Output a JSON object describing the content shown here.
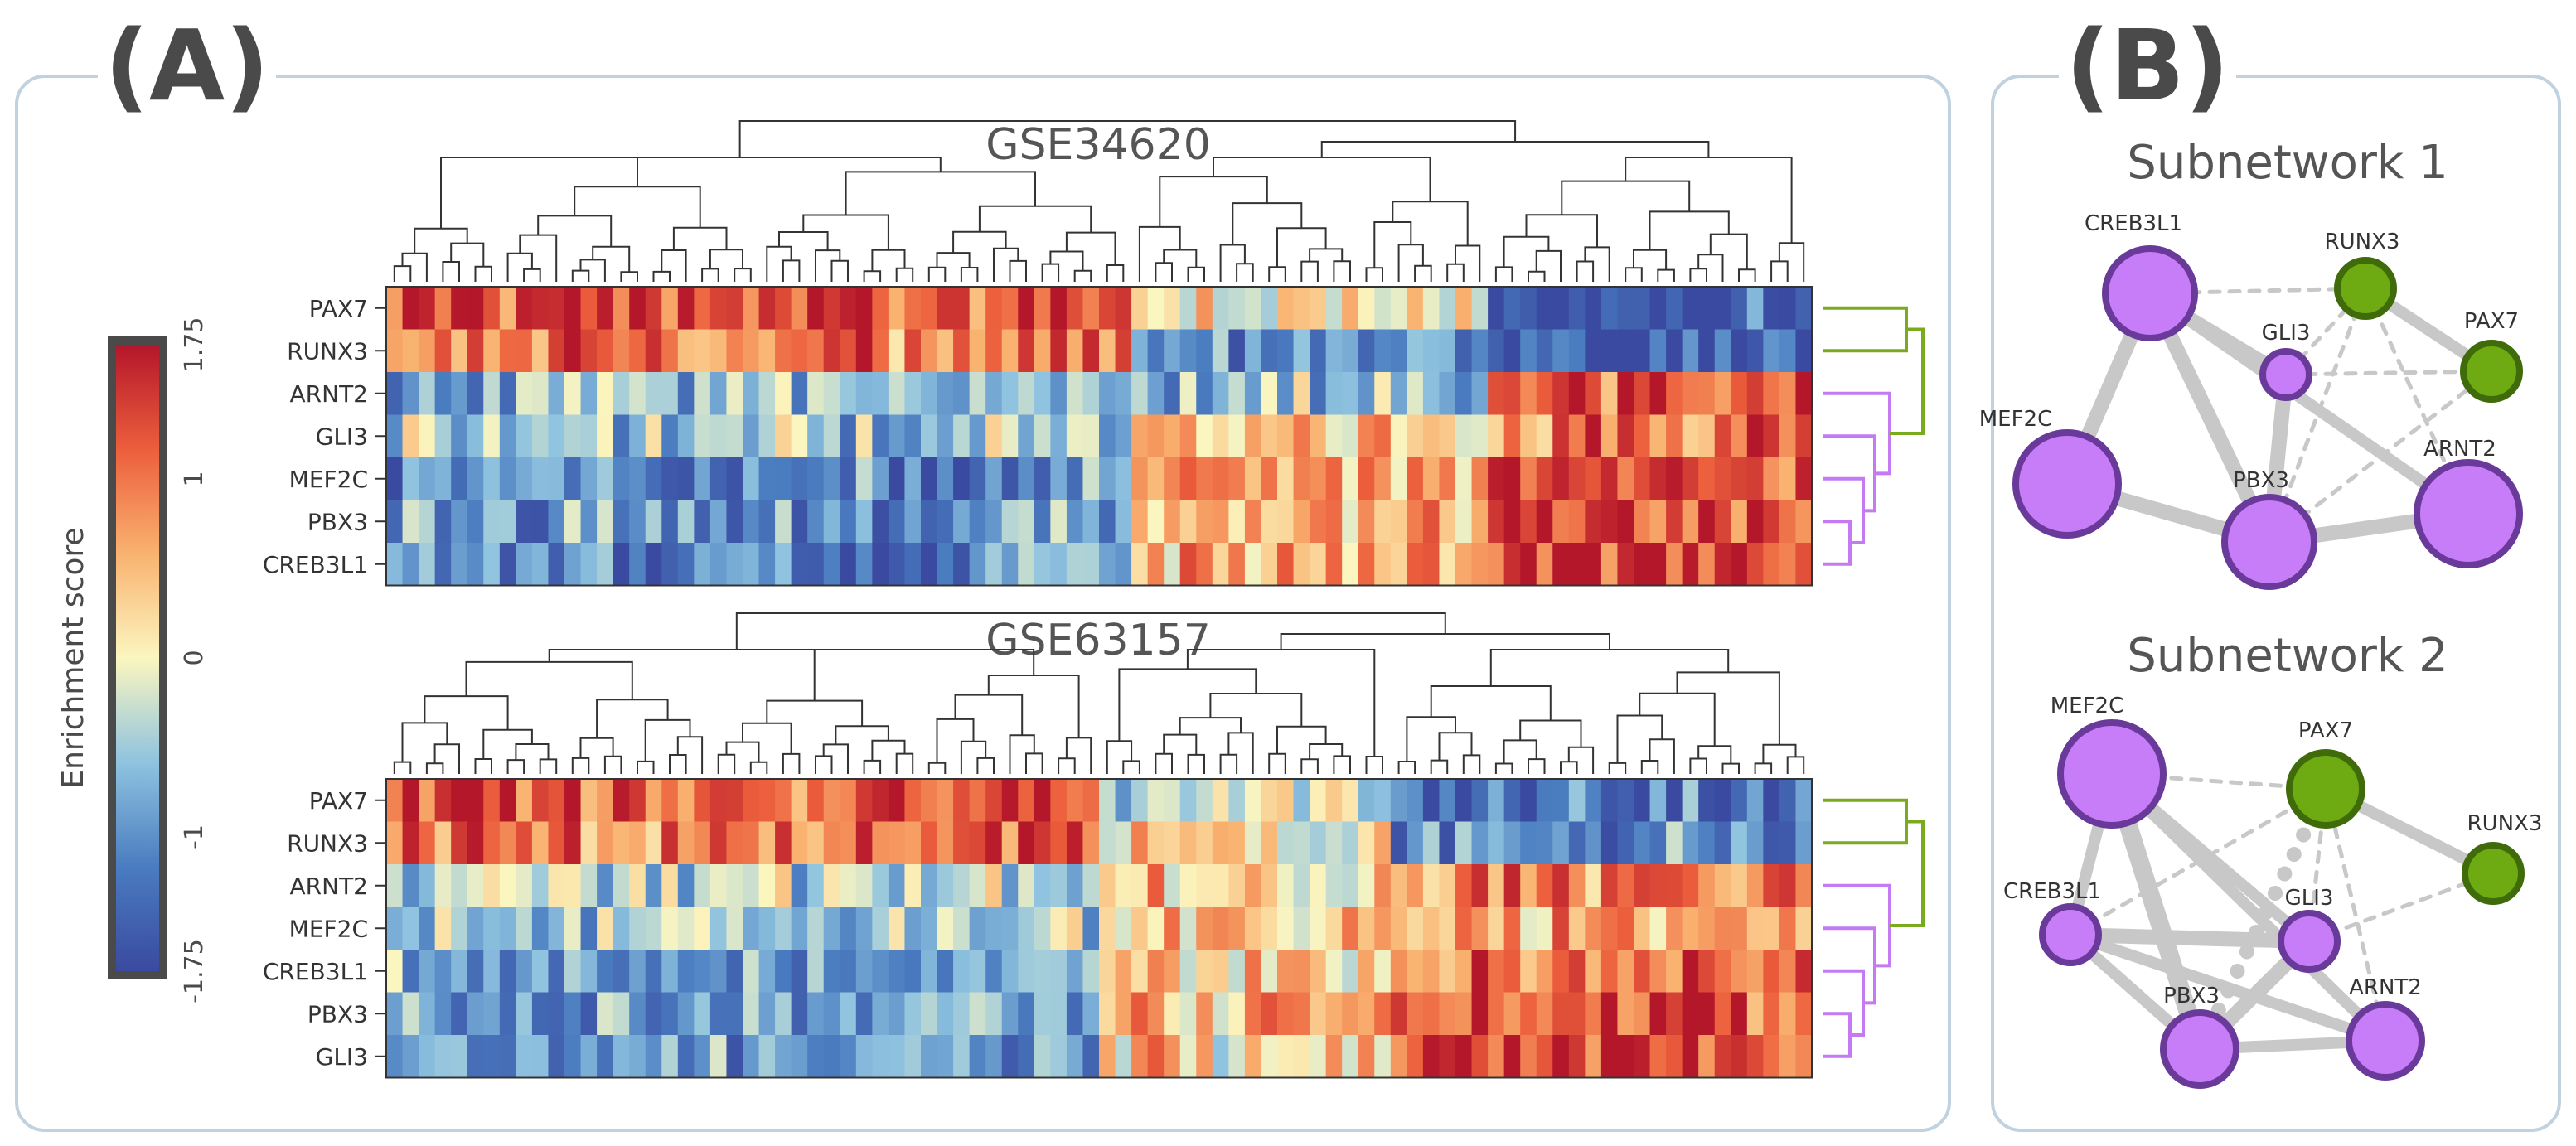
{
  "panel_a": {
    "label": "(A)"
  },
  "panel_b": {
    "label": "(B)"
  },
  "chart_data": [
    {
      "type": "heatmap",
      "title": "GSE34620",
      "rows": [
        "PAX7",
        "RUNX3",
        "ARNT2",
        "GLI3",
        "MEF2C",
        "PBX3",
        "CREB3L1"
      ],
      "row_clusters": {
        "green": [
          "PAX7",
          "RUNX3"
        ],
        "purple": [
          "ARNT2",
          "GLI3",
          "MEF2C",
          "PBX3",
          "CREB3L1"
        ]
      },
      "n_columns": 88,
      "pattern_blocks": [
        {
          "columns": "1-46",
          "PAX7": 1.3,
          "RUNX3": 1.0,
          "ARNT2": -0.6,
          "GLI3": -0.5,
          "MEF2C": -1.0,
          "PBX3": -0.9,
          "CREB3L1": -1.1
        },
        {
          "columns": "47-68",
          "PAX7": 0.1,
          "RUNX3": -0.9,
          "ARNT2": -0.5,
          "GLI3": 0.5,
          "MEF2C": 0.6,
          "PBX3": 0.6,
          "CREB3L1": 0.5
        },
        {
          "columns": "69-88",
          "PAX7": -1.5,
          "RUNX3": -1.4,
          "ARNT2": 1.2,
          "GLI3": 1.0,
          "MEF2C": 1.4,
          "PBX3": 1.4,
          "CREB3L1": 1.5
        }
      ]
    },
    {
      "type": "heatmap",
      "title": "GSE63157",
      "rows": [
        "PAX7",
        "RUNX3",
        "ARNT2",
        "MEF2C",
        "CREB3L1",
        "PBX3",
        "GLI3"
      ],
      "row_clusters": {
        "green": [
          "PAX7",
          "RUNX3"
        ],
        "purple": [
          "ARNT2",
          "MEF2C",
          "CREB3L1",
          "PBX3",
          "GLI3"
        ]
      },
      "n_columns": 88,
      "pattern_blocks": [
        {
          "columns": "1-44",
          "PAX7": 1.3,
          "RUNX3": 1.0,
          "ARNT2": -0.4,
          "MEF2C": -0.5,
          "CREB3L1": -0.8,
          "PBX3": -0.9,
          "GLI3": -1.0
        },
        {
          "columns": "45-62",
          "PAX7": -0.3,
          "RUNX3": 0.2,
          "ARNT2": 0.3,
          "MEF2C": 0.5,
          "CREB3L1": 0.4,
          "PBX3": 0.5,
          "GLI3": 0.3
        },
        {
          "columns": "63-88",
          "PAX7": -1.3,
          "RUNX3": -1.0,
          "ARNT2": 0.9,
          "MEF2C": 0.6,
          "CREB3L1": 1.1,
          "PBX3": 1.3,
          "GLI3": 1.3
        }
      ]
    },
    {
      "type": "colorbar",
      "label": "Enrichment score",
      "ticks": [
        "1.75",
        "1",
        "0",
        "-1",
        "-1.75"
      ],
      "tick_values": [
        1.75,
        1,
        0,
        -1,
        -1.75
      ],
      "range": [
        -1.75,
        1.75
      ],
      "colors": [
        "#3a4aa0",
        "#4a7cc0",
        "#8fc3df",
        "#fbf6c0",
        "#f9b270",
        "#ec5e3c",
        "#b4162a"
      ]
    },
    {
      "type": "network",
      "title": "Subnetwork 1",
      "nodes": [
        {
          "id": "CREB3L1",
          "group": "purple",
          "size": 4
        },
        {
          "id": "RUNX3",
          "group": "green",
          "size": 2
        },
        {
          "id": "GLI3",
          "group": "purple",
          "size": 1
        },
        {
          "id": "PAX7",
          "group": "green",
          "size": 2
        },
        {
          "id": "MEF2C",
          "group": "purple",
          "size": 5
        },
        {
          "id": "PBX3",
          "group": "purple",
          "size": 4
        },
        {
          "id": "ARNT2",
          "group": "purple",
          "size": 5
        }
      ],
      "edges": [
        {
          "source": "CREB3L1",
          "target": "MEF2C",
          "style": "solid",
          "weight": 3
        },
        {
          "source": "CREB3L1",
          "target": "PBX3",
          "style": "solid",
          "weight": 3
        },
        {
          "source": "CREB3L1",
          "target": "GLI3",
          "style": "solid",
          "weight": 2
        },
        {
          "source": "CREB3L1",
          "target": "ARNT2",
          "style": "solid",
          "weight": 2
        },
        {
          "source": "MEF2C",
          "target": "PBX3",
          "style": "solid",
          "weight": 3
        },
        {
          "source": "PBX3",
          "target": "ARNT2",
          "style": "solid",
          "weight": 3
        },
        {
          "source": "PBX3",
          "target": "GLI3",
          "style": "solid",
          "weight": 3
        },
        {
          "source": "RUNX3",
          "target": "PAX7",
          "style": "solid",
          "weight": 2
        },
        {
          "source": "CREB3L1",
          "target": "RUNX3",
          "style": "dashed",
          "weight": 1
        },
        {
          "source": "GLI3",
          "target": "PAX7",
          "style": "dashed",
          "weight": 1
        },
        {
          "source": "GLI3",
          "target": "RUNX3",
          "style": "dashed",
          "weight": 1
        },
        {
          "source": "PBX3",
          "target": "RUNX3",
          "style": "dashed",
          "weight": 1
        },
        {
          "source": "RUNX3",
          "target": "ARNT2",
          "style": "dashed",
          "weight": 1
        },
        {
          "source": "PBX3",
          "target": "PAX7",
          "style": "dashed",
          "weight": 1
        }
      ]
    },
    {
      "type": "network",
      "title": "Subnetwork 2",
      "nodes": [
        {
          "id": "MEF2C",
          "group": "purple",
          "size": 5
        },
        {
          "id": "PAX7",
          "group": "green",
          "size": 3
        },
        {
          "id": "RUNX3",
          "group": "green",
          "size": 2
        },
        {
          "id": "CREB3L1",
          "group": "purple",
          "size": 2
        },
        {
          "id": "GLI3",
          "group": "purple",
          "size": 2
        },
        {
          "id": "PBX3",
          "group": "purple",
          "size": 3
        },
        {
          "id": "ARNT2",
          "group": "purple",
          "size": 3
        }
      ],
      "edges": [
        {
          "source": "MEF2C",
          "target": "CREB3L1",
          "style": "solid",
          "weight": 2
        },
        {
          "source": "MEF2C",
          "target": "PBX3",
          "style": "solid",
          "weight": 4
        },
        {
          "source": "MEF2C",
          "target": "GLI3",
          "style": "solid",
          "weight": 2
        },
        {
          "source": "MEF2C",
          "target": "ARNT2",
          "style": "solid",
          "weight": 2
        },
        {
          "source": "CREB3L1",
          "target": "GLI3",
          "style": "solid",
          "weight": 3
        },
        {
          "source": "CREB3L1",
          "target": "PBX3",
          "style": "solid",
          "weight": 2
        },
        {
          "source": "CREB3L1",
          "target": "ARNT2",
          "style": "solid",
          "weight": 2
        },
        {
          "source": "GLI3",
          "target": "PBX3",
          "style": "solid",
          "weight": 3
        },
        {
          "source": "PBX3",
          "target": "ARNT2",
          "style": "solid",
          "weight": 2
        },
        {
          "source": "PAX7",
          "target": "RUNX3",
          "style": "solid",
          "weight": 2
        },
        {
          "source": "MEF2C",
          "target": "PAX7",
          "style": "dashed",
          "weight": 1
        },
        {
          "source": "CREB3L1",
          "target": "PAX7",
          "style": "dashed",
          "weight": 1
        },
        {
          "source": "GLI3",
          "target": "PAX7",
          "style": "dashed",
          "weight": 1
        },
        {
          "source": "GLI3",
          "target": "RUNX3",
          "style": "dashed",
          "weight": 1
        },
        {
          "source": "PAX7",
          "target": "ARNT2",
          "style": "dashed",
          "weight": 1
        },
        {
          "source": "PBX3",
          "target": "PAX7",
          "style": "dotted",
          "weight": 4
        }
      ]
    }
  ]
}
